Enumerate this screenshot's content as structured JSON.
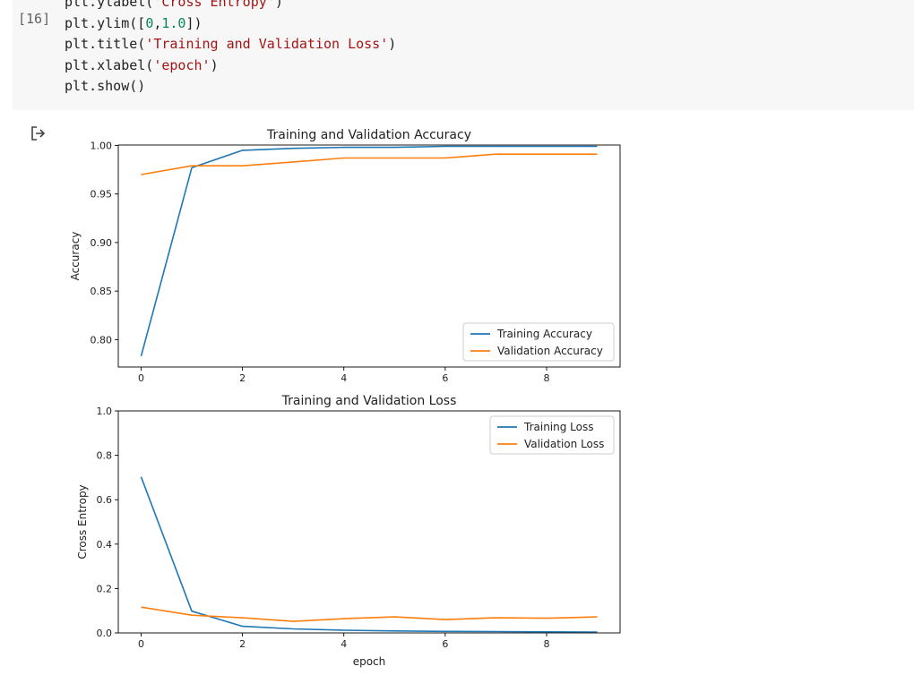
{
  "cell": {
    "execution_count": "[16]",
    "code_lines": [
      [
        {
          "t": "plt.ylabel("
        },
        {
          "t": "'Cross Entropy'",
          "c": "s"
        },
        {
          "t": ")"
        }
      ],
      [
        {
          "t": "plt.ylim(["
        },
        {
          "t": "0",
          "c": "n"
        },
        {
          "t": ","
        },
        {
          "t": "1.0",
          "c": "n"
        },
        {
          "t": "])"
        }
      ],
      [
        {
          "t": "plt.title("
        },
        {
          "t": "'Training and Validation Loss'",
          "c": "s"
        },
        {
          "t": ")"
        }
      ],
      [
        {
          "t": "plt.xlabel("
        },
        {
          "t": "'epoch'",
          "c": "s"
        },
        {
          "t": ")"
        }
      ],
      [
        {
          "t": "plt.show()"
        }
      ]
    ]
  },
  "output": {
    "icon": "output-arrow-icon"
  },
  "chart_data": [
    {
      "type": "line",
      "title": "Training and Validation Accuracy",
      "xlabel": "",
      "ylabel": "Accuracy",
      "xlim": [
        -0.45,
        9.45
      ],
      "ylim": [
        0.7718,
        1.0004
      ],
      "xticks": [
        0,
        2,
        4,
        6,
        8
      ],
      "yticks": [
        0.8,
        0.85,
        0.9,
        0.95,
        1.0
      ],
      "ytick_labels": [
        "0.80",
        "0.85",
        "0.90",
        "0.95",
        "1.00"
      ],
      "legend_placement": "lower-right",
      "grid": false,
      "x": [
        0,
        1,
        2,
        3,
        4,
        5,
        6,
        7,
        8,
        9
      ],
      "series": [
        {
          "name": "Training Accuracy",
          "color": "#1f77b4",
          "values": [
            0.783,
            0.977,
            0.995,
            0.997,
            0.998,
            0.998,
            0.999,
            0.999,
            0.999,
            0.999
          ]
        },
        {
          "name": "Validation Accuracy",
          "color": "#ff7f0e",
          "values": [
            0.97,
            0.979,
            0.979,
            0.983,
            0.987,
            0.987,
            0.987,
            0.991,
            0.991,
            0.991
          ]
        }
      ]
    },
    {
      "type": "line",
      "title": "Training and Validation Loss",
      "xlabel": "epoch",
      "ylabel": "Cross Entropy",
      "xlim": [
        -0.45,
        9.45
      ],
      "ylim": [
        0,
        1.0
      ],
      "xticks": [
        0,
        2,
        4,
        6,
        8
      ],
      "yticks": [
        0.0,
        0.2,
        0.4,
        0.6,
        0.8,
        1.0
      ],
      "ytick_labels": [
        "0.0",
        "0.2",
        "0.4",
        "0.6",
        "0.8",
        "1.0"
      ],
      "legend_placement": "upper-right",
      "grid": false,
      "x": [
        0,
        1,
        2,
        3,
        4,
        5,
        6,
        7,
        8,
        9
      ],
      "series": [
        {
          "name": "Training Loss",
          "color": "#1f77b4",
          "values": [
            0.703,
            0.098,
            0.03,
            0.018,
            0.012,
            0.009,
            0.007,
            0.006,
            0.005,
            0.004
          ]
        },
        {
          "name": "Validation Loss",
          "color": "#ff7f0e",
          "values": [
            0.116,
            0.08,
            0.068,
            0.052,
            0.064,
            0.072,
            0.06,
            0.068,
            0.066,
            0.072
          ]
        }
      ]
    }
  ]
}
